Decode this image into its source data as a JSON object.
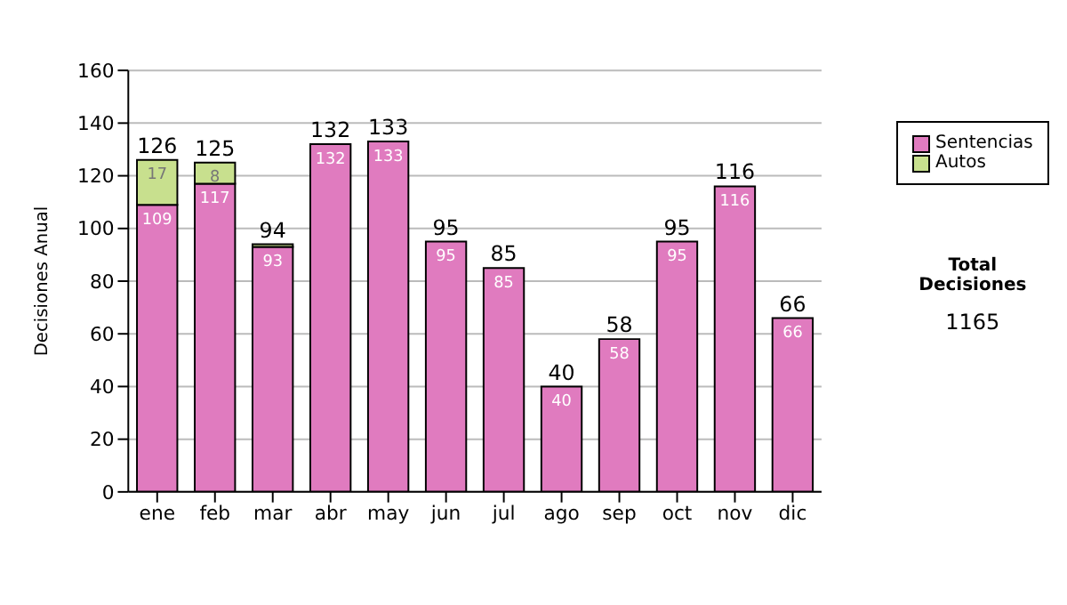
{
  "chart_data": {
    "type": "bar",
    "ylabel": "Decisiones Anual",
    "categories": [
      "ene",
      "feb",
      "mar",
      "abr",
      "may",
      "jun",
      "jul",
      "ago",
      "sep",
      "oct",
      "nov",
      "dic"
    ],
    "series": [
      {
        "name": "Sentencias",
        "color": "#e07bbf",
        "values": [
          109,
          117,
          93,
          132,
          133,
          95,
          85,
          40,
          58,
          95,
          116,
          66
        ],
        "value_labels": [
          "109",
          "117",
          "93",
          "132",
          "133",
          "95",
          "85",
          "40",
          "58",
          "95",
          "116",
          "66"
        ]
      },
      {
        "name": "Autos",
        "color": "#c8e08e",
        "values": [
          17,
          8,
          1,
          0,
          0,
          0,
          0,
          0,
          0,
          0,
          0,
          0
        ],
        "value_labels": [
          "17",
          "8",
          null,
          null,
          null,
          null,
          null,
          null,
          null,
          null,
          null,
          null
        ]
      }
    ],
    "stacked": true,
    "totals": [
      "126",
      "125",
      "94",
      "132",
      "133",
      "95",
      "85",
      "40",
      "58",
      "95",
      "116",
      "66"
    ],
    "ylim": [
      0,
      160
    ],
    "yticks": [
      0,
      20,
      40,
      60,
      80,
      100,
      120,
      140,
      160
    ],
    "grid": "y",
    "legend": "right",
    "annotations": [
      "Total Decisiones",
      "1165"
    ]
  }
}
